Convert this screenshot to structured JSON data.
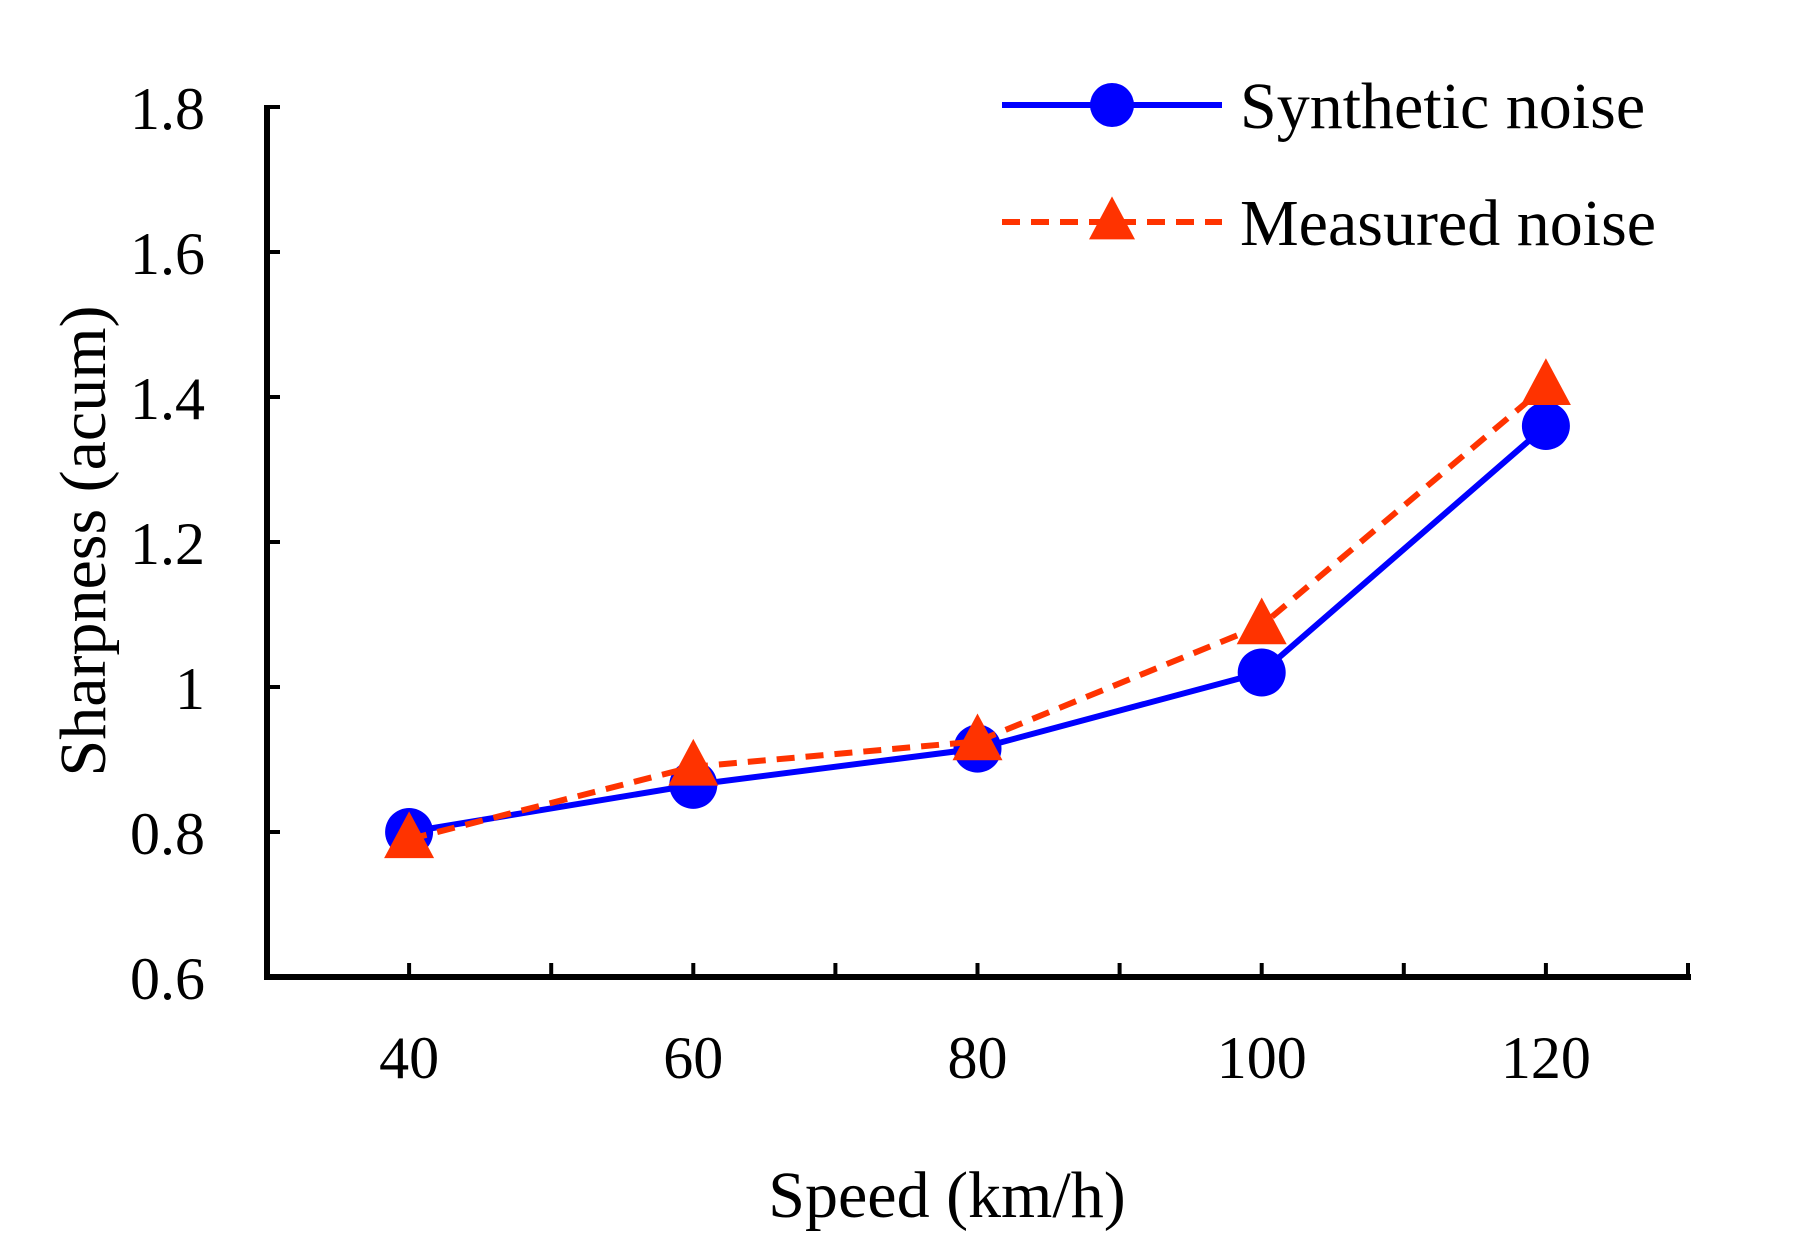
{
  "chart_data": {
    "type": "line",
    "title": "",
    "xlabel": "Speed (km/h)",
    "ylabel": "Sharpness (acum)",
    "categories": [
      "40",
      "60",
      "80",
      "100",
      "120"
    ],
    "x": [
      40,
      60,
      80,
      100,
      120
    ],
    "xlim": [
      30,
      130
    ],
    "ylim": [
      0.6,
      1.8
    ],
    "yticks": [
      0.6,
      0.8,
      1,
      1.2,
      1.4,
      1.6,
      1.8
    ],
    "ytick_labels": [
      "0.6",
      "0.8",
      "1",
      "1.2",
      "1.4",
      "1.6",
      "1.8"
    ],
    "grid": false,
    "legend_position": "top-right",
    "series": [
      {
        "name": "Synthetic noise",
        "values": [
          0.8,
          0.865,
          0.915,
          1.02,
          1.36
        ],
        "color": "#0000ff",
        "line_style": "solid",
        "marker": "circle"
      },
      {
        "name": "Measured noise",
        "values": [
          0.79,
          0.89,
          0.925,
          1.085,
          1.415
        ],
        "color": "#ff3300",
        "line_style": "dashed",
        "marker": "triangle"
      }
    ]
  }
}
